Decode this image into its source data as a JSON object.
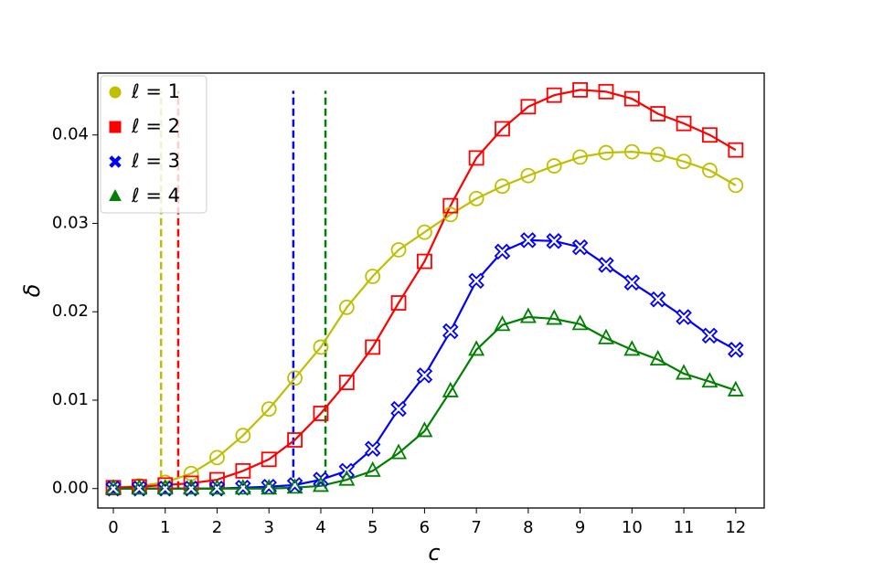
{
  "chart_data": {
    "type": "line",
    "xlabel": "c",
    "ylabel": "δ",
    "x": [
      0,
      0.5,
      1,
      1.5,
      2,
      2.5,
      3,
      3.5,
      4,
      4.5,
      5,
      5.5,
      6,
      6.5,
      7,
      7.5,
      8,
      8.5,
      9,
      9.5,
      10,
      10.5,
      11,
      11.5,
      12
    ],
    "series": [
      {
        "name": "ℓ = 1",
        "color": "#bfbf00",
        "marker": "circle",
        "values": [
          0.0001,
          0.0003,
          0.0007,
          0.0017,
          0.0035,
          0.006,
          0.009,
          0.0125,
          0.016,
          0.0205,
          0.024,
          0.027,
          0.029,
          0.031,
          0.0328,
          0.0342,
          0.0354,
          0.0365,
          0.0375,
          0.038,
          0.0381,
          0.0378,
          0.037,
          0.036,
          0.0343
        ]
      },
      {
        "name": "ℓ = 2",
        "color": "#ff0000",
        "marker": "square",
        "values": [
          0.0001,
          0.0002,
          0.0004,
          0.0006,
          0.001,
          0.002,
          0.0033,
          0.0055,
          0.0085,
          0.012,
          0.016,
          0.021,
          0.0257,
          0.032,
          0.0374,
          0.0407,
          0.0432,
          0.0445,
          0.0451,
          0.0449,
          0.0441,
          0.0424,
          0.0413,
          0.04,
          0.0383
        ]
      },
      {
        "name": "ℓ = 3",
        "color": "#0000ff",
        "marker": "x",
        "values": [
          0,
          0,
          0,
          0,
          0,
          0.0001,
          0.0002,
          0.0004,
          0.001,
          0.002,
          0.0045,
          0.009,
          0.0128,
          0.0178,
          0.0235,
          0.0268,
          0.0281,
          0.028,
          0.0273,
          0.0253,
          0.0233,
          0.0214,
          0.0194,
          0.0173,
          0.0157
        ]
      },
      {
        "name": "ℓ = 4",
        "color": "#008000",
        "marker": "triangle",
        "values": [
          0,
          0,
          0,
          0,
          0,
          0,
          0,
          0.0001,
          0.0003,
          0.001,
          0.002,
          0.004,
          0.0065,
          0.011,
          0.0157,
          0.0185,
          0.0194,
          0.0192,
          0.0186,
          0.017,
          0.0157,
          0.0146,
          0.013,
          0.0121,
          0.0111
        ]
      }
    ],
    "vlines": [
      {
        "x": 0.92,
        "color": "#bfbf00"
      },
      {
        "x": 1.25,
        "color": "#ff0000"
      },
      {
        "x": 3.47,
        "color": "#0000ff"
      },
      {
        "x": 4.09,
        "color": "#008000"
      }
    ],
    "vline_range": [
      0,
      0.045
    ],
    "xlim": [
      -0.3,
      12.55
    ],
    "ylim": [
      -0.0022,
      0.047
    ],
    "xticks": [
      0,
      1,
      2,
      3,
      4,
      5,
      6,
      7,
      8,
      9,
      10,
      11,
      12
    ],
    "yticks": [
      {
        "value": 0,
        "label": "0.00"
      },
      0.01,
      0.02,
      0.03,
      0.04
    ],
    "legend": "upper left",
    "grid": false
  }
}
